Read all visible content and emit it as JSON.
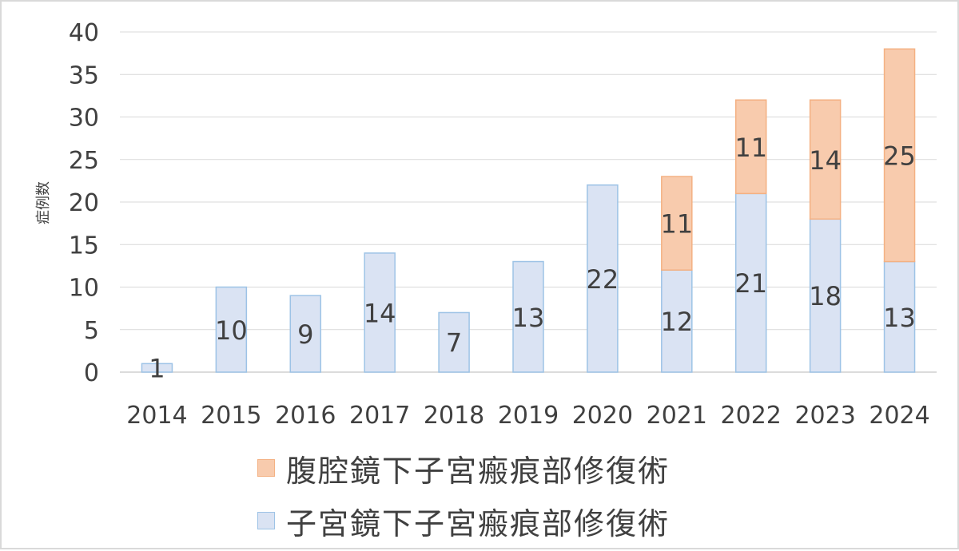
{
  "chart_data": {
    "type": "bar",
    "stacked": true,
    "categories": [
      "2014",
      "2015",
      "2016",
      "2017",
      "2018",
      "2019",
      "2020",
      "2021",
      "2022",
      "2023",
      "2024"
    ],
    "series": [
      {
        "name": "子宮鏡下子宮瘢痕部修復術",
        "values": [
          1,
          10,
          9,
          14,
          7,
          13,
          22,
          12,
          21,
          18,
          13
        ],
        "color": "#dae3f3",
        "border": "#9dc3e6"
      },
      {
        "name": "腹腔鏡下子宮瘢痕部修復術",
        "values": [
          null,
          null,
          null,
          null,
          null,
          null,
          null,
          11,
          11,
          14,
          25
        ],
        "color": "#f8cbad",
        "border": "#f4b183"
      }
    ],
    "ylabel": "症例数",
    "xlabel": "",
    "ylim": [
      0,
      40
    ],
    "yticks": [
      0,
      5,
      10,
      15,
      20,
      25,
      30,
      35,
      40
    ],
    "grid": true,
    "legend_position": "bottom",
    "data_labels": true
  }
}
